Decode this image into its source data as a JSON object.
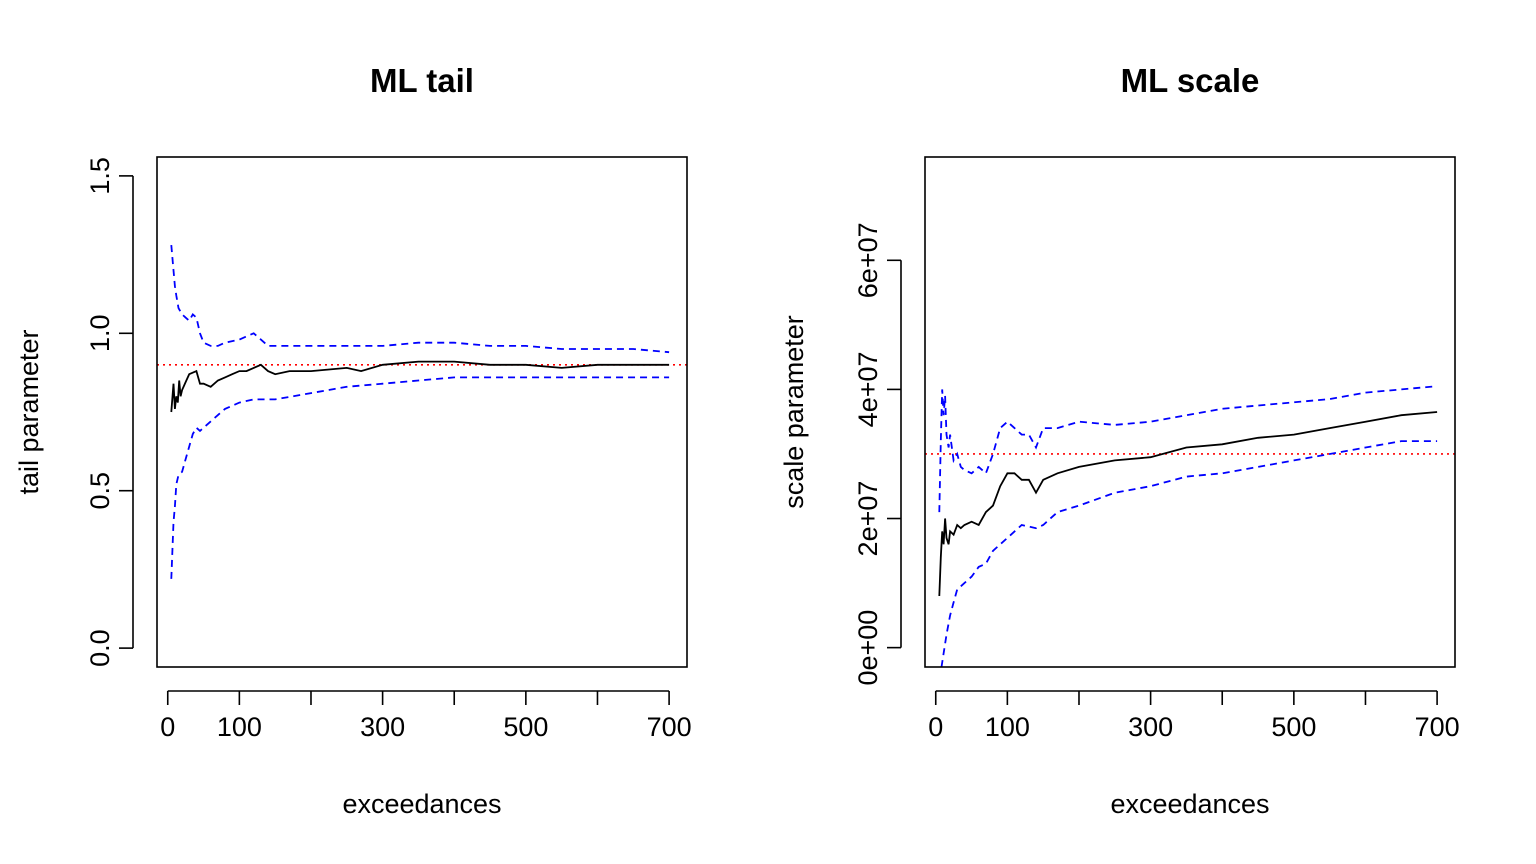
{
  "chart_data": [
    {
      "type": "line",
      "title": "ML tail",
      "xlabel": "exceedances",
      "ylabel": "tail parameter",
      "xlim": [
        -15,
        725
      ],
      "ylim": [
        -0.06,
        1.56
      ],
      "xticks": [
        0,
        100,
        200,
        300,
        400,
        500,
        600,
        700
      ],
      "xtick_labels": [
        "0",
        "100",
        "",
        "300",
        "",
        "500",
        "",
        "700"
      ],
      "yticks": [
        0,
        0.5,
        1.0,
        1.5
      ],
      "ytick_labels": [
        "0.0",
        "0.5",
        "1.0",
        "1.5"
      ],
      "hline": {
        "y": 0.9,
        "color": "#ff0000",
        "style": "dotted"
      },
      "series": [
        {
          "role": "estimate",
          "color": "#000000",
          "style": "solid",
          "x": [
            5,
            8,
            10,
            12,
            14,
            16,
            18,
            20,
            24,
            30,
            40,
            45,
            50,
            60,
            70,
            80,
            90,
            100,
            110,
            120,
            130,
            140,
            150,
            170,
            200,
            250,
            270,
            300,
            350,
            400,
            450,
            500,
            550,
            600,
            650,
            700
          ],
          "y": [
            0.75,
            0.84,
            0.76,
            0.8,
            0.78,
            0.85,
            0.8,
            0.82,
            0.84,
            0.87,
            0.88,
            0.84,
            0.84,
            0.83,
            0.85,
            0.86,
            0.87,
            0.88,
            0.88,
            0.89,
            0.9,
            0.88,
            0.87,
            0.88,
            0.88,
            0.89,
            0.88,
            0.9,
            0.91,
            0.91,
            0.9,
            0.9,
            0.89,
            0.9,
            0.9,
            0.9
          ]
        },
        {
          "role": "upper",
          "color": "#0000ff",
          "style": "dashed",
          "x": [
            5,
            8,
            10,
            12,
            15,
            20,
            25,
            30,
            35,
            40,
            45,
            50,
            60,
            70,
            80,
            100,
            110,
            120,
            130,
            140,
            150,
            170,
            200,
            250,
            300,
            350,
            400,
            450,
            500,
            550,
            600,
            650,
            700
          ],
          "y": [
            1.28,
            1.2,
            1.15,
            1.12,
            1.08,
            1.06,
            1.05,
            1.04,
            1.06,
            1.05,
            1.0,
            0.97,
            0.96,
            0.96,
            0.97,
            0.98,
            0.99,
            1.0,
            0.98,
            0.96,
            0.96,
            0.96,
            0.96,
            0.96,
            0.96,
            0.97,
            0.97,
            0.96,
            0.96,
            0.95,
            0.95,
            0.95,
            0.94
          ]
        },
        {
          "role": "lower",
          "color": "#0000ff",
          "style": "dashed",
          "x": [
            5,
            8,
            10,
            12,
            15,
            20,
            25,
            30,
            35,
            40,
            45,
            50,
            60,
            70,
            80,
            100,
            120,
            150,
            200,
            250,
            300,
            350,
            400,
            450,
            500,
            550,
            600,
            650,
            700
          ],
          "y": [
            0.22,
            0.4,
            0.45,
            0.52,
            0.55,
            0.56,
            0.6,
            0.64,
            0.68,
            0.7,
            0.69,
            0.7,
            0.72,
            0.74,
            0.76,
            0.78,
            0.79,
            0.79,
            0.81,
            0.83,
            0.84,
            0.85,
            0.86,
            0.86,
            0.86,
            0.86,
            0.86,
            0.86,
            0.86
          ]
        }
      ]
    },
    {
      "type": "line",
      "title": "ML scale",
      "xlabel": "exceedances",
      "ylabel": "scale parameter",
      "xlim": [
        -15,
        725
      ],
      "ylim": [
        -3000000,
        76000000
      ],
      "xticks": [
        0,
        100,
        200,
        300,
        400,
        500,
        600,
        700
      ],
      "xtick_labels": [
        "0",
        "100",
        "",
        "300",
        "",
        "500",
        "",
        "700"
      ],
      "yticks": [
        0,
        20000000,
        40000000,
        60000000
      ],
      "ytick_labels": [
        "0e+00",
        "2e+07",
        "4e+07",
        "6e+07"
      ],
      "hline": {
        "y": 30000000,
        "color": "#ff0000",
        "style": "dotted"
      },
      "series": [
        {
          "role": "estimate",
          "color": "#000000",
          "style": "solid",
          "x": [
            5,
            7,
            9,
            11,
            13,
            15,
            18,
            20,
            25,
            30,
            35,
            40,
            50,
            60,
            70,
            80,
            90,
            100,
            110,
            120,
            130,
            140,
            150,
            170,
            200,
            250,
            300,
            350,
            400,
            450,
            500,
            550,
            600,
            650,
            700
          ],
          "y": [
            8000000,
            14000000,
            18000000,
            16000000,
            20000000,
            17000000,
            16000000,
            18000000,
            17500000,
            19000000,
            18500000,
            19000000,
            19500000,
            19000000,
            21000000,
            22000000,
            25000000,
            27000000,
            27000000,
            26000000,
            26000000,
            24000000,
            26000000,
            27000000,
            28000000,
            29000000,
            29500000,
            31000000,
            31500000,
            32500000,
            33000000,
            34000000,
            35000000,
            36000000,
            36500000
          ]
        },
        {
          "role": "upper",
          "color": "#0000ff",
          "style": "dashed",
          "x": [
            5,
            7,
            9,
            11,
            13,
            15,
            18,
            20,
            25,
            30,
            35,
            40,
            50,
            60,
            70,
            80,
            90,
            100,
            110,
            120,
            130,
            140,
            150,
            170,
            200,
            250,
            300,
            350,
            400,
            450,
            500,
            550,
            600,
            650,
            700
          ],
          "y": [
            21000000,
            32000000,
            40000000,
            36000000,
            39000000,
            33000000,
            31000000,
            33000000,
            29000000,
            30000000,
            28000000,
            27500000,
            27000000,
            28000000,
            27000000,
            30000000,
            34000000,
            35000000,
            34000000,
            33000000,
            33000000,
            31000000,
            34000000,
            34000000,
            35000000,
            34500000,
            35000000,
            36000000,
            37000000,
            37500000,
            38000000,
            38500000,
            39500000,
            40000000,
            40500000
          ]
        },
        {
          "role": "lower",
          "color": "#0000ff",
          "style": "dashed",
          "x": [
            8,
            15,
            20,
            25,
            30,
            40,
            50,
            60,
            70,
            80,
            100,
            120,
            140,
            150,
            170,
            200,
            250,
            300,
            350,
            400,
            450,
            500,
            550,
            600,
            650,
            700
          ],
          "y": [
            -3000000,
            2000000,
            5000000,
            7000000,
            9000000,
            10000000,
            11000000,
            12500000,
            13000000,
            15000000,
            17000000,
            19000000,
            18500000,
            19000000,
            21000000,
            22000000,
            24000000,
            25000000,
            26500000,
            27000000,
            28000000,
            29000000,
            30000000,
            31000000,
            32000000,
            32000000
          ]
        }
      ]
    }
  ]
}
